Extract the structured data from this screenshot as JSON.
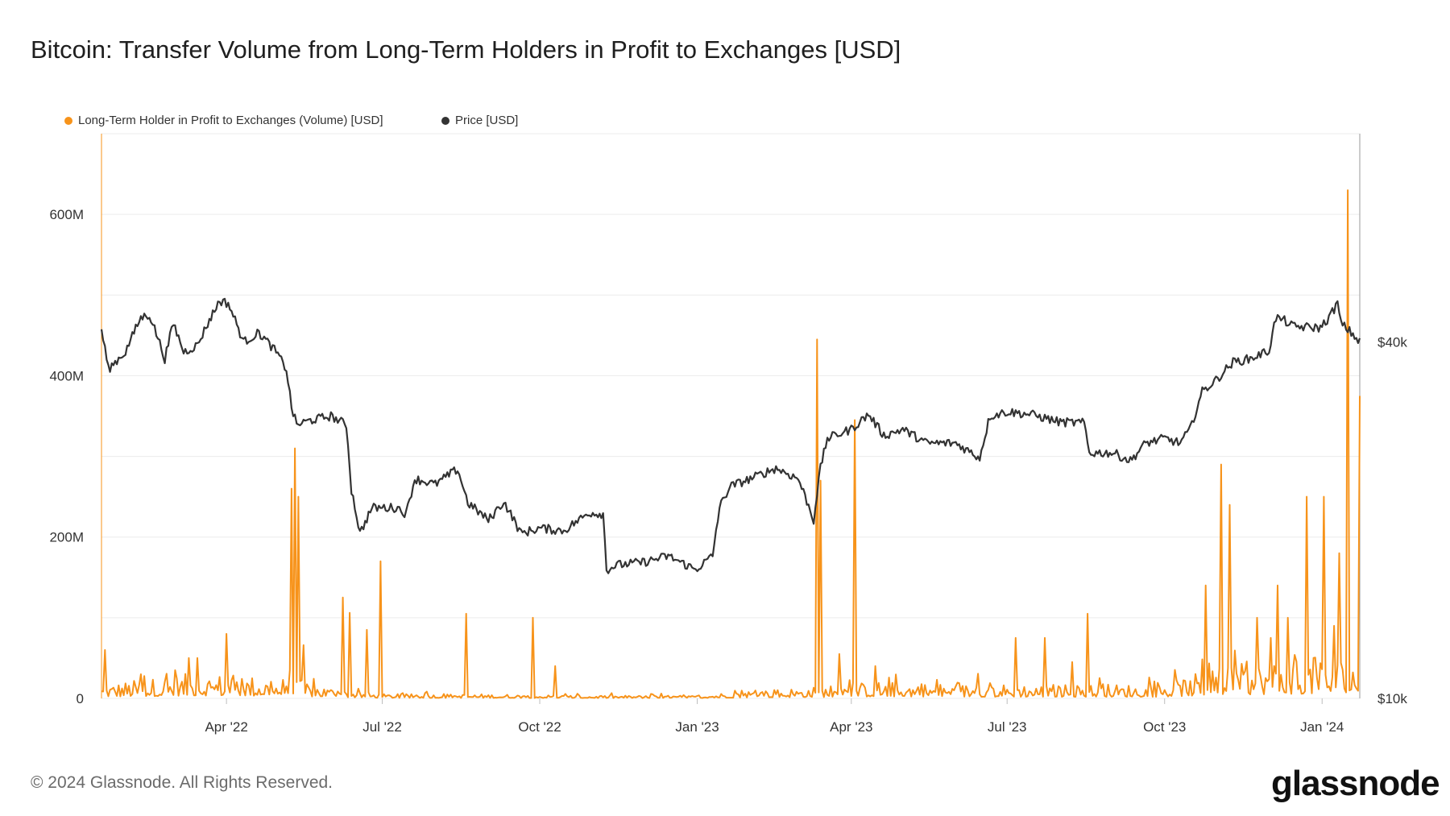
{
  "title": "Bitcoin: Transfer Volume from Long-Term Holders in Profit to Exchanges [USD]",
  "footer": {
    "copyright": "© 2024 Glassnode. All Rights Reserved.",
    "brand": "glassnode"
  },
  "colors": {
    "volume": "#f7931a",
    "price": "#333333",
    "grid": "#ececec",
    "axis_text": "#333333"
  },
  "chart_data": {
    "type": "line",
    "title": "Bitcoin: Transfer Volume from Long-Term Holders in Profit to Exchanges [USD]",
    "legend": {
      "placement": "top-left",
      "entries": [
        "Long-Term Holder in Profit to Exchanges (Volume) [USD]",
        "Price [USD]"
      ]
    },
    "grid": true,
    "x": {
      "tick_labels": [
        "Apr '22",
        "Jul '22",
        "Oct '22",
        "Jan '23",
        "Apr '23",
        "Jul '23",
        "Oct '23",
        "Jan '24"
      ],
      "tick_dates": [
        "2022-04-01",
        "2022-07-01",
        "2022-10-01",
        "2023-01-01",
        "2023-04-01",
        "2023-07-01",
        "2023-10-01",
        "2024-01-01"
      ],
      "range": [
        "2022-01-18",
        "2024-01-23"
      ]
    },
    "y_left": {
      "tick_labels": [
        "0",
        "200M",
        "400M",
        "600M"
      ],
      "tick_values": [
        0,
        200000000,
        400000000,
        600000000
      ],
      "range": [
        0,
        700000000
      ]
    },
    "y_right": {
      "tick_labels": [
        "$10k",
        "$40k"
      ],
      "tick_values": [
        10000,
        40000
      ],
      "scale": "log",
      "range": [
        10000,
        90000
      ]
    },
    "series": [
      {
        "name": "Long-Term Holder in Profit to Exchanges (Volume) [USD]",
        "axis": "left",
        "color": "#f7931a",
        "baseline": [
          [
            "2022-01-18",
            10000000
          ],
          [
            "2022-02-15",
            14000000
          ],
          [
            "2022-03-15",
            18000000
          ],
          [
            "2022-04-15",
            16000000
          ],
          [
            "2022-05-10",
            14000000
          ],
          [
            "2022-06-01",
            8000000
          ],
          [
            "2022-07-01",
            3000000
          ],
          [
            "2022-09-01",
            3000000
          ],
          [
            "2022-11-01",
            2000000
          ],
          [
            "2023-01-01",
            2000000
          ],
          [
            "2023-02-01",
            6000000
          ],
          [
            "2023-03-10",
            8000000
          ],
          [
            "2023-04-15",
            12000000
          ],
          [
            "2023-06-01",
            10000000
          ],
          [
            "2023-08-01",
            10000000
          ],
          [
            "2023-10-01",
            10000000
          ],
          [
            "2023-11-01",
            22000000
          ],
          [
            "2023-12-15",
            28000000
          ],
          [
            "2024-01-23",
            30000000
          ]
        ],
        "peaks": [
          [
            "2022-01-20",
            60000000
          ],
          [
            "2022-02-10",
            30000000
          ],
          [
            "2022-03-02",
            35000000
          ],
          [
            "2022-03-10",
            50000000
          ],
          [
            "2022-03-15",
            50000000
          ],
          [
            "2022-04-01",
            80000000
          ],
          [
            "2022-05-09",
            260000000
          ],
          [
            "2022-05-11",
            310000000
          ],
          [
            "2022-05-13",
            250000000
          ],
          [
            "2022-05-16",
            66000000
          ],
          [
            "2022-06-08",
            125000000
          ],
          [
            "2022-06-12",
            106000000
          ],
          [
            "2022-06-22",
            85000000
          ],
          [
            "2022-06-30",
            170000000
          ],
          [
            "2022-08-19",
            105000000
          ],
          [
            "2022-09-27",
            100000000
          ],
          [
            "2022-10-10",
            40000000
          ],
          [
            "2023-03-12",
            445000000
          ],
          [
            "2023-03-14",
            270000000
          ],
          [
            "2023-03-25",
            55000000
          ],
          [
            "2023-04-03",
            345000000
          ],
          [
            "2023-04-15",
            40000000
          ],
          [
            "2023-07-06",
            75000000
          ],
          [
            "2023-07-23",
            75000000
          ],
          [
            "2023-08-08",
            45000000
          ],
          [
            "2023-08-17",
            105000000
          ],
          [
            "2023-10-25",
            140000000
          ],
          [
            "2023-11-03",
            290000000
          ],
          [
            "2023-11-08",
            240000000
          ],
          [
            "2023-11-24",
            100000000
          ],
          [
            "2023-12-02",
            75000000
          ],
          [
            "2023-12-06",
            140000000
          ],
          [
            "2023-12-12",
            100000000
          ],
          [
            "2023-12-23",
            250000000
          ],
          [
            "2024-01-02",
            250000000
          ],
          [
            "2024-01-08",
            90000000
          ],
          [
            "2024-01-11",
            180000000
          ],
          [
            "2024-01-16",
            630000000
          ],
          [
            "2024-01-23",
            375000000
          ]
        ]
      },
      {
        "name": "Price [USD]",
        "axis": "right",
        "color": "#333333",
        "points": [
          [
            "2022-01-18",
            42000
          ],
          [
            "2022-01-22",
            36000
          ],
          [
            "2022-02-01",
            38500
          ],
          [
            "2022-02-10",
            44000
          ],
          [
            "2022-02-15",
            44500
          ],
          [
            "2022-02-24",
            37500
          ],
          [
            "2022-03-01",
            43000
          ],
          [
            "2022-03-07",
            38500
          ],
          [
            "2022-03-15",
            39500
          ],
          [
            "2022-03-28",
            47000
          ],
          [
            "2022-04-02",
            46500
          ],
          [
            "2022-04-11",
            40000
          ],
          [
            "2022-04-20",
            41500
          ],
          [
            "2022-04-30",
            38500
          ],
          [
            "2022-05-06",
            36000
          ],
          [
            "2022-05-09",
            31000
          ],
          [
            "2022-05-12",
            29000
          ],
          [
            "2022-05-20",
            29500
          ],
          [
            "2022-06-01",
            30000
          ],
          [
            "2022-06-10",
            29000
          ],
          [
            "2022-06-13",
            22500
          ],
          [
            "2022-06-18",
            19000
          ],
          [
            "2022-06-25",
            21000
          ],
          [
            "2022-07-10",
            21000
          ],
          [
            "2022-07-15",
            20500
          ],
          [
            "2022-07-20",
            23500
          ],
          [
            "2022-08-01",
            23000
          ],
          [
            "2022-08-14",
            24400
          ],
          [
            "2022-08-20",
            21400
          ],
          [
            "2022-09-01",
            20000
          ],
          [
            "2022-09-10",
            21500
          ],
          [
            "2022-09-20",
            19000
          ],
          [
            "2022-10-01",
            19400
          ],
          [
            "2022-10-15",
            19200
          ],
          [
            "2022-10-30",
            20600
          ],
          [
            "2022-11-07",
            20500
          ],
          [
            "2022-11-09",
            16500
          ],
          [
            "2022-11-15",
            16800
          ],
          [
            "2022-12-01",
            17000
          ],
          [
            "2022-12-15",
            17400
          ],
          [
            "2022-12-31",
            16500
          ],
          [
            "2023-01-10",
            17400
          ],
          [
            "2023-01-14",
            21000
          ],
          [
            "2023-01-20",
            22800
          ],
          [
            "2023-02-01",
            23500
          ],
          [
            "2023-02-16",
            24500
          ],
          [
            "2023-03-01",
            23500
          ],
          [
            "2023-03-10",
            20000
          ],
          [
            "2023-03-14",
            24500
          ],
          [
            "2023-03-18",
            27500
          ],
          [
            "2023-04-01",
            28500
          ],
          [
            "2023-04-11",
            30200
          ],
          [
            "2023-04-20",
            27800
          ],
          [
            "2023-05-01",
            28500
          ],
          [
            "2023-05-15",
            27000
          ],
          [
            "2023-06-01",
            27000
          ],
          [
            "2023-06-15",
            25500
          ],
          [
            "2023-06-21",
            30000
          ],
          [
            "2023-07-01",
            30500
          ],
          [
            "2023-07-15",
            30200
          ],
          [
            "2023-08-01",
            29300
          ],
          [
            "2023-08-15",
            29200
          ],
          [
            "2023-08-18",
            26000
          ],
          [
            "2023-09-01",
            26000
          ],
          [
            "2023-09-11",
            25200
          ],
          [
            "2023-09-20",
            27000
          ],
          [
            "2023-10-01",
            27500
          ],
          [
            "2023-10-10",
            27000
          ],
          [
            "2023-10-16",
            28500
          ],
          [
            "2023-10-23",
            33000
          ],
          [
            "2023-10-31",
            34500
          ],
          [
            "2023-11-10",
            37000
          ],
          [
            "2023-11-20",
            37500
          ],
          [
            "2023-12-01",
            38700
          ],
          [
            "2023-12-05",
            44000
          ],
          [
            "2023-12-10",
            43500
          ],
          [
            "2023-12-15",
            42500
          ],
          [
            "2023-12-31",
            42300
          ],
          [
            "2024-01-05",
            44000
          ],
          [
            "2024-01-10",
            46500
          ],
          [
            "2024-01-12",
            43000
          ],
          [
            "2024-01-18",
            41500
          ],
          [
            "2024-01-23",
            40000
          ]
        ]
      }
    ]
  }
}
